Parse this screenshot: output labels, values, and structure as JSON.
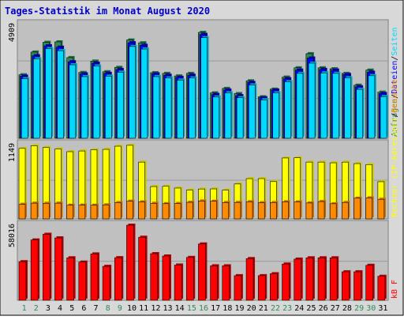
{
  "title": "Tages-Statistik im Monat August 2020",
  "colors": {
    "frame_bg": "#d8d8d8",
    "panel_bg": "#c0c0c0",
    "title": "#0000c8",
    "hits": "#2e8b57",
    "files": "#0000ff",
    "pages": "#00d8ff",
    "visits": "#ffff00",
    "sites": "#ff8c00",
    "kbytes": "#ff0000",
    "axis_label_hits": "#2e8b57",
    "axis_label_files": "#0000ff",
    "axis_label_pages": "#008080",
    "axis_label_visits": "#ff0000",
    "axis_label_sites": "#ff8c00",
    "weekday_label": "#0000c8",
    "weekend_label": "#2e8b57"
  },
  "chart_data": [
    {
      "type": "bar",
      "panel": "requests",
      "ymax_label": "4909",
      "ylim": [
        0,
        4909
      ],
      "legend_right": [
        {
          "text": "Anfragen",
          "color_key": "hits"
        },
        {
          "text": "/",
          "color_key": "frame_text"
        },
        {
          "text": "Dateien",
          "color_key": "files"
        },
        {
          "text": "/",
          "color_key": "frame_text"
        },
        {
          "text": "Seiten",
          "color_key": "pages"
        }
      ],
      "categories": [
        "1",
        "2",
        "3",
        "4",
        "5",
        "6",
        "7",
        "8",
        "9",
        "10",
        "11",
        "12",
        "13",
        "14",
        "15",
        "16",
        "17",
        "18",
        "19",
        "20",
        "21",
        "22",
        "23",
        "24",
        "25",
        "26",
        "27",
        "28",
        "29",
        "30",
        "31"
      ],
      "series": [
        {
          "name": "Anfragen",
          "color_key": "hits",
          "values": [
            2740,
            3720,
            4140,
            4160,
            3480,
            2840,
            3330,
            2870,
            3060,
            4240,
            4120,
            2830,
            2800,
            2690,
            2800,
            4570,
            1960,
            2150,
            1930,
            2480,
            1790,
            2120,
            2640,
            3040,
            3650,
            3040,
            3000,
            2800,
            2290,
            2940,
            1990
          ]
        },
        {
          "name": "Dateien",
          "color_key": "files",
          "values": [
            2680,
            3560,
            3990,
            3930,
            3300,
            2780,
            3240,
            2800,
            2970,
            4120,
            4010,
            2780,
            2720,
            2630,
            2720,
            4480,
            1890,
            2080,
            1840,
            2410,
            1750,
            2080,
            2570,
            2940,
            3460,
            2970,
            2940,
            2750,
            2220,
            2850,
            1930
          ]
        },
        {
          "name": "Seiten",
          "color_key": "pages",
          "values": [
            2570,
            3430,
            3870,
            3780,
            3170,
            2660,
            3120,
            2680,
            2850,
            3960,
            3850,
            2660,
            2600,
            2510,
            2600,
            4340,
            1780,
            1960,
            1750,
            2300,
            1660,
            1960,
            2440,
            2800,
            3240,
            2820,
            2800,
            2610,
            2110,
            2700,
            1800
          ]
        }
      ]
    },
    {
      "type": "bar",
      "panel": "visits",
      "ymax_label": "1149",
      "ylim": [
        0,
        1149
      ],
      "legend_right": [
        {
          "text": "Rechner (IP-Adressen)",
          "color_key": "visits"
        },
        {
          "text": "/",
          "color_key": "frame_text"
        },
        {
          "text": "Besuche",
          "color_key": "sites"
        }
      ],
      "categories": [
        "1",
        "2",
        "3",
        "4",
        "5",
        "6",
        "7",
        "8",
        "9",
        "10",
        "11",
        "12",
        "13",
        "14",
        "15",
        "16",
        "17",
        "18",
        "19",
        "20",
        "21",
        "22",
        "23",
        "24",
        "25",
        "26",
        "27",
        "28",
        "29",
        "30",
        "31"
      ],
      "series": [
        {
          "name": "Besuche",
          "color_key": "visits",
          "values": [
            1090,
            1131,
            1103,
            1081,
            1039,
            1050,
            1069,
            1075,
            1124,
            1138,
            878,
            500,
            504,
            477,
            446,
            462,
            464,
            445,
            540,
            622,
            623,
            577,
            942,
            945,
            878,
            878,
            867,
            878,
            855,
            840,
            575
          ]
        },
        {
          "name": "Rechner (IP-Adressen)",
          "color_key": "sites",
          "values": [
            225,
            243,
            241,
            243,
            211,
            213,
            211,
            217,
            252,
            273,
            263,
            241,
            235,
            238,
            256,
            277,
            273,
            253,
            254,
            265,
            250,
            253,
            265,
            262,
            246,
            268,
            234,
            254,
            320,
            325,
            303
          ]
        }
      ]
    },
    {
      "type": "bar",
      "panel": "kbytes",
      "ymax_label": "58016",
      "ylim": [
        0,
        58016
      ],
      "legend_right": [
        {
          "text": "kB F",
          "color_key": "kbytes"
        }
      ],
      "categories": [
        "1",
        "2",
        "3",
        "4",
        "5",
        "6",
        "7",
        "8",
        "9",
        "10",
        "11",
        "12",
        "13",
        "14",
        "15",
        "16",
        "17",
        "18",
        "19",
        "20",
        "21",
        "22",
        "23",
        "24",
        "25",
        "26",
        "27",
        "28",
        "29",
        "30",
        "31"
      ],
      "series": [
        {
          "name": "kB F",
          "color_key": "kbytes",
          "values": [
            29800,
            46600,
            51000,
            48200,
            32800,
            29500,
            35800,
            26200,
            32900,
            58016,
            48700,
            36000,
            34200,
            27200,
            33100,
            43500,
            26600,
            26600,
            19000,
            32200,
            19000,
            20500,
            28000,
            31800,
            32800,
            32800,
            32800,
            22000,
            22000,
            27000,
            18500
          ]
        }
      ]
    }
  ],
  "day_labels": [
    {
      "text": "1",
      "weekend": true
    },
    {
      "text": "2",
      "weekend": true
    },
    {
      "text": "3",
      "weekend": false
    },
    {
      "text": "4",
      "weekend": false
    },
    {
      "text": "5",
      "weekend": false
    },
    {
      "text": "6",
      "weekend": false
    },
    {
      "text": "7",
      "weekend": false
    },
    {
      "text": "8",
      "weekend": true
    },
    {
      "text": "9",
      "weekend": true
    },
    {
      "text": "10",
      "weekend": false
    },
    {
      "text": "11",
      "weekend": false
    },
    {
      "text": "12",
      "weekend": false
    },
    {
      "text": "13",
      "weekend": false
    },
    {
      "text": "14",
      "weekend": false
    },
    {
      "text": "15",
      "weekend": true
    },
    {
      "text": "16",
      "weekend": true
    },
    {
      "text": "17",
      "weekend": false
    },
    {
      "text": "18",
      "weekend": false
    },
    {
      "text": "19",
      "weekend": false
    },
    {
      "text": "20",
      "weekend": false
    },
    {
      "text": "21",
      "weekend": false
    },
    {
      "text": "22",
      "weekend": true
    },
    {
      "text": "23",
      "weekend": true
    },
    {
      "text": "24",
      "weekend": false
    },
    {
      "text": "25",
      "weekend": false
    },
    {
      "text": "26",
      "weekend": false
    },
    {
      "text": "27",
      "weekend": false
    },
    {
      "text": "28",
      "weekend": false
    },
    {
      "text": "29",
      "weekend": true
    },
    {
      "text": "30",
      "weekend": true
    },
    {
      "text": "31",
      "weekend": false
    }
  ]
}
